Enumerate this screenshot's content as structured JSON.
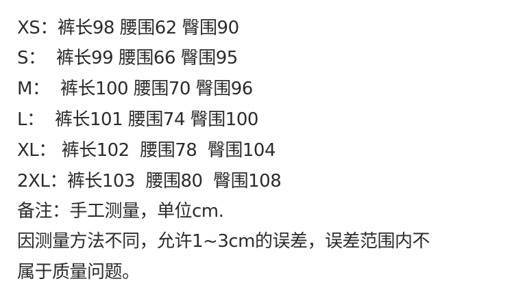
{
  "sizes": [
    {
      "size": "XS：",
      "length": "裤长98",
      "waist": "腰围62",
      "hip": "臀围90"
    },
    {
      "size": "S：  ",
      "length": "裤长99",
      "waist": "腰围66",
      "hip": "臀围95"
    },
    {
      "size": "M：  ",
      "length": "裤长100",
      "waist": "腰围70",
      "hip": "臀围96"
    },
    {
      "size": "L：  ",
      "length": "裤长101",
      "waist": "腰围74",
      "hip": "臀围100"
    },
    {
      "size": "XL： ",
      "length": "裤长102 ",
      "waist": "腰围78 ",
      "hip": "臀围104"
    },
    {
      "size": "2XL：",
      "length": "裤长103 ",
      "waist": "腰围80 ",
      "hip": "臀围108"
    }
  ],
  "note": "备注：手工测量，单位cm.",
  "disclaimer_line1": "因测量方法不同，允许1~3cm的误差，误差范围内不",
  "disclaimer_line2": "属于质量问题。"
}
